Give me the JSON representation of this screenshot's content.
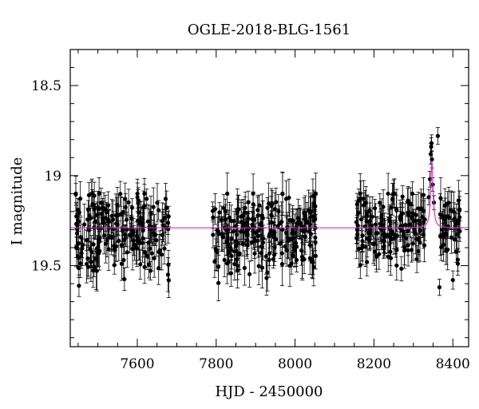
{
  "chart_data": {
    "type": "scatter",
    "title": "OGLE-2018-BLG-1561",
    "xlabel": "HJD - 2450000",
    "ylabel": "I magnitude",
    "xlim": [
      7430,
      8440
    ],
    "ylim": [
      19.95,
      18.3
    ],
    "y_inverted": true,
    "grid": false,
    "x_ticks": [
      7600,
      7800,
      8000,
      8200,
      8400
    ],
    "x_tick_labels": [
      "7600",
      "7800",
      "8000",
      "8200",
      "8400"
    ],
    "y_ticks": [
      18.5,
      19,
      19.5
    ],
    "y_tick_labels": [
      "18.5",
      "19",
      "19.5"
    ],
    "baseline": 19.29,
    "colors": {
      "points": "#000000",
      "model": "#cc33cc"
    },
    "observing_seasons": [
      {
        "x": [
          7443,
          7680
        ],
        "mean": 19.31,
        "scatter": 0.12
      },
      {
        "x": [
          7790,
          8055
        ],
        "mean": 19.31,
        "scatter": 0.11
      },
      {
        "x": [
          8155,
          8330
        ],
        "mean": 19.29,
        "scatter": 0.1
      },
      {
        "x": [
          8365,
          8418
        ],
        "mean": 19.28,
        "scatter": 0.08
      }
    ],
    "event_points": [
      {
        "x": 8339,
        "y": 19.12
      },
      {
        "x": 8342,
        "y": 19.02
      },
      {
        "x": 8344,
        "y": 18.88
      },
      {
        "x": 8345,
        "y": 18.84
      },
      {
        "x": 8346,
        "y": 18.82
      },
      {
        "x": 8347,
        "y": 18.91
      },
      {
        "x": 8349,
        "y": 19.05
      },
      {
        "x": 8352,
        "y": 19.15
      },
      {
        "x": 8362,
        "y": 18.78
      },
      {
        "x": 8366,
        "y": 19.62
      },
      {
        "x": 8400,
        "y": 19.58
      }
    ],
    "model_peak": {
      "x": 8347,
      "y": 18.92,
      "width_days": 3.5
    }
  }
}
